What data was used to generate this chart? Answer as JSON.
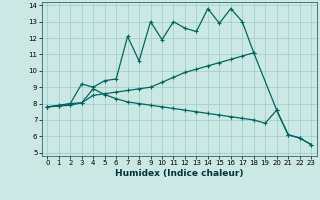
{
  "xlabel": "Humidex (Indice chaleur)",
  "xlim": [
    -0.5,
    23.5
  ],
  "ylim": [
    4.8,
    14.2
  ],
  "xticks": [
    0,
    1,
    2,
    3,
    4,
    5,
    6,
    7,
    8,
    9,
    10,
    11,
    12,
    13,
    14,
    15,
    16,
    17,
    18,
    19,
    20,
    21,
    22,
    23
  ],
  "yticks": [
    5,
    6,
    7,
    8,
    9,
    10,
    11,
    12,
    13,
    14
  ],
  "bg_color": "#cce8e4",
  "grid_color": "#99cccc",
  "line_color": "#006660",
  "line1_x": [
    0,
    1,
    2,
    3,
    4,
    5,
    6,
    7,
    8,
    9,
    10,
    11,
    12,
    13,
    14,
    15,
    16,
    17,
    18,
    20,
    21,
    22,
    23
  ],
  "line1_y": [
    7.8,
    7.9,
    8.0,
    9.2,
    9.0,
    9.4,
    9.5,
    12.1,
    10.6,
    13.0,
    11.9,
    13.0,
    12.6,
    12.4,
    13.8,
    12.9,
    13.8,
    13.0,
    11.1,
    7.6,
    6.1,
    5.9,
    5.5
  ],
  "line2_x": [
    0,
    1,
    2,
    3,
    4,
    5,
    6,
    7,
    8,
    9,
    10,
    11,
    12,
    13,
    14,
    15,
    16,
    17,
    18
  ],
  "line2_y": [
    7.8,
    7.85,
    7.9,
    8.05,
    8.5,
    8.6,
    8.7,
    8.8,
    8.9,
    9.0,
    9.3,
    9.6,
    9.9,
    10.1,
    10.3,
    10.5,
    10.7,
    10.9,
    11.1
  ],
  "line3_x": [
    0,
    1,
    2,
    3,
    4,
    5,
    6,
    7,
    8,
    9,
    10,
    11,
    12,
    13,
    14,
    15,
    16,
    17,
    18,
    19,
    20,
    21,
    22,
    23
  ],
  "line3_y": [
    7.8,
    7.85,
    8.0,
    8.05,
    8.9,
    8.55,
    8.3,
    8.1,
    8.0,
    7.9,
    7.8,
    7.7,
    7.6,
    7.5,
    7.4,
    7.3,
    7.2,
    7.1,
    7.0,
    6.8,
    7.6,
    6.1,
    5.9,
    5.5
  ]
}
